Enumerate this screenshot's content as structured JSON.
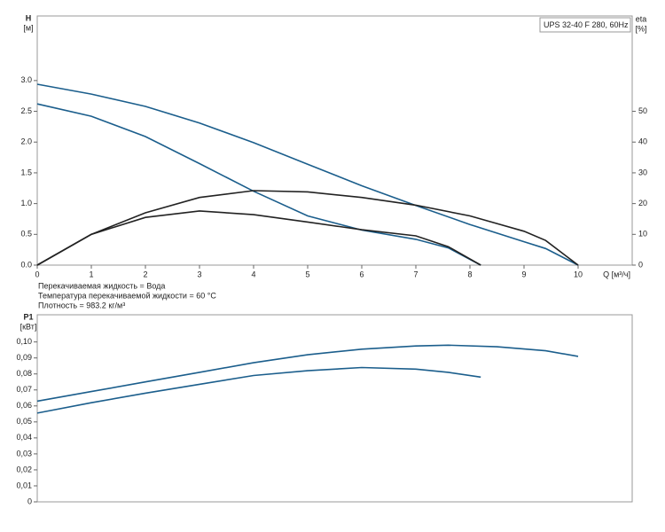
{
  "chart_data": [
    {
      "type": "line",
      "legend_label": "UPS 32-40 F 280, 60Hz",
      "ylabel": "H",
      "yunit": "[м]",
      "y2label": "eta",
      "y2unit": "[%]",
      "xlabel": "Q [м³/ч]",
      "notes": [
        "Перекачиваемая жидкость = Вода",
        "Температура перекачиваемой жидкости = 60 °C",
        "Плотность = 983.2 кг/м³"
      ],
      "xlim": [
        0,
        11
      ],
      "xticks": [
        0,
        1,
        2,
        3,
        4,
        5,
        6,
        7,
        8,
        9,
        10
      ],
      "ylim": [
        0,
        4.05
      ],
      "yticks": [
        {
          "value": 0,
          "label": "0.0"
        },
        {
          "value": 0.5,
          "label": "0.5"
        },
        {
          "value": 1,
          "label": "1.0"
        },
        {
          "value": 1.5,
          "label": "1.5"
        },
        {
          "value": 2,
          "label": "2.0"
        },
        {
          "value": 2.5,
          "label": "2.5"
        },
        {
          "value": 3,
          "label": "3.0"
        }
      ],
      "y2lim": [
        0,
        81
      ],
      "y2ticks": [
        0,
        10,
        20,
        30,
        40,
        50
      ],
      "series": [
        {
          "color": "#1b5e8c",
          "x": [
            0,
            1,
            2,
            3,
            4,
            5,
            6,
            7,
            8,
            9,
            9.4,
            10
          ],
          "values": [
            2.94,
            2.78,
            2.58,
            2.31,
            1.99,
            1.64,
            1.29,
            0.97,
            0.66,
            0.38,
            0.27,
            0
          ]
        },
        {
          "color": "#1b5e8c",
          "x": [
            0,
            1,
            2,
            3,
            4,
            5,
            6,
            7,
            7.6,
            8.2
          ],
          "values": [
            2.62,
            2.42,
            2.09,
            1.65,
            1.2,
            0.8,
            0.57,
            0.42,
            0.28,
            0
          ]
        },
        {
          "color": "#222222",
          "axis": "y2",
          "x": [
            0,
            1,
            2,
            3,
            4,
            5,
            6,
            7,
            8,
            9,
            9.4,
            10
          ],
          "values": [
            0,
            10,
            17,
            22,
            24.2,
            23.8,
            22,
            19.5,
            16,
            11,
            8,
            0
          ]
        },
        {
          "color": "#222222",
          "axis": "y2",
          "x": [
            0,
            1,
            2,
            3,
            4,
            5,
            6,
            7,
            7.6,
            8.2
          ],
          "values": [
            0,
            10,
            15.5,
            17.6,
            16.4,
            14,
            11.5,
            9.5,
            6,
            0
          ]
        }
      ]
    },
    {
      "type": "line",
      "ylabel": "P1",
      "yunit": "[кВт]",
      "xlim": [
        0,
        11
      ],
      "ylim": [
        0,
        0.117
      ],
      "yticks": [
        {
          "value": 0,
          "label": "0"
        },
        {
          "value": 0.01,
          "label": "0,01"
        },
        {
          "value": 0.02,
          "label": "0,02"
        },
        {
          "value": 0.03,
          "label": "0,03"
        },
        {
          "value": 0.04,
          "label": "0,04"
        },
        {
          "value": 0.05,
          "label": "0,05"
        },
        {
          "value": 0.06,
          "label": "0,06"
        },
        {
          "value": 0.07,
          "label": "0,07"
        },
        {
          "value": 0.08,
          "label": "0,08"
        },
        {
          "value": 0.09,
          "label": "0,09"
        },
        {
          "value": 0.1,
          "label": "0,10"
        }
      ],
      "series": [
        {
          "color": "#1b5e8c",
          "x": [
            0,
            1,
            2,
            3,
            4,
            5,
            6,
            7,
            7.6,
            8.5,
            9.4,
            10
          ],
          "values": [
            0.063,
            0.069,
            0.075,
            0.081,
            0.087,
            0.092,
            0.0955,
            0.0975,
            0.098,
            0.097,
            0.0945,
            0.091
          ]
        },
        {
          "color": "#1b5e8c",
          "x": [
            0,
            1,
            2,
            3,
            4,
            5,
            6,
            7,
            7.6,
            8.2
          ],
          "values": [
            0.0555,
            0.062,
            0.068,
            0.0735,
            0.079,
            0.082,
            0.084,
            0.083,
            0.081,
            0.078
          ]
        }
      ]
    }
  ]
}
